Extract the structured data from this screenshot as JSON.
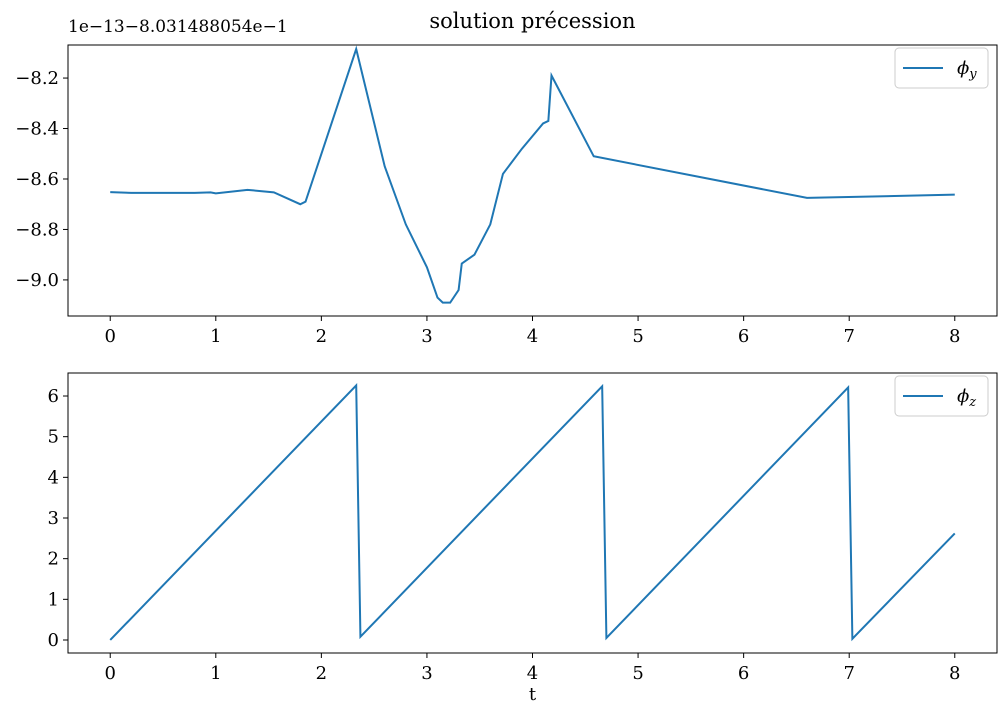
{
  "chart_data": [
    {
      "type": "line",
      "title": "solution précession",
      "y_offset_label": "1e−13−8.031488054e−1",
      "x": [
        0,
        0.2,
        0.8,
        0.95,
        1.0,
        1.3,
        1.55,
        1.8,
        1.85,
        2.33,
        2.6,
        2.8,
        3.0,
        3.1,
        3.15,
        3.22,
        3.3,
        3.33,
        3.45,
        3.6,
        3.72,
        3.9,
        4.1,
        4.15,
        4.18,
        4.58,
        6.6,
        8.0
      ],
      "series": [
        {
          "name": "ϕy",
          "color": "#1f77b4",
          "values": [
            -8.652,
            -8.655,
            -8.655,
            -8.653,
            -8.657,
            -8.643,
            -8.653,
            -8.7,
            -8.69,
            -8.085,
            -8.55,
            -8.78,
            -8.95,
            -9.07,
            -9.09,
            -9.09,
            -9.04,
            -8.935,
            -8.9,
            -8.78,
            -8.58,
            -8.48,
            -8.38,
            -8.37,
            -8.19,
            -8.51,
            -8.675,
            -8.662
          ]
        }
      ],
      "xlim": [
        -0.4,
        8.4
      ],
      "xticks": [
        0,
        1,
        2,
        3,
        4,
        5,
        6,
        7,
        8
      ],
      "ylim": [
        -9.143,
        -8.069
      ],
      "yticks": [
        {
          "value": -9.0,
          "label": "−9.0"
        },
        {
          "value": -8.8,
          "label": "−8.8"
        },
        {
          "value": -8.6,
          "label": "−8.6"
        },
        {
          "value": -8.4,
          "label": "−8.4"
        },
        {
          "value": -8.2,
          "label": "−8.2"
        }
      ],
      "grid": false,
      "legend": "upper right"
    },
    {
      "type": "line",
      "x_label": "t",
      "x": [
        0,
        2.33,
        2.37,
        4.66,
        4.7,
        6.99,
        7.03,
        8.0
      ],
      "series": [
        {
          "name": "ϕz",
          "color": "#1f77b4",
          "values": [
            0,
            6.26,
            0.08,
            6.24,
            0.05,
            6.21,
            0.03,
            2.62
          ]
        }
      ],
      "xlim": [
        -0.4,
        8.4
      ],
      "xticks": [
        0,
        1,
        2,
        3,
        4,
        5,
        6,
        7,
        8
      ],
      "ylim": [
        -0.32,
        6.566
      ],
      "yticks": [
        0,
        1,
        2,
        3,
        4,
        5,
        6
      ],
      "grid": false,
      "legend": "upper right"
    }
  ]
}
